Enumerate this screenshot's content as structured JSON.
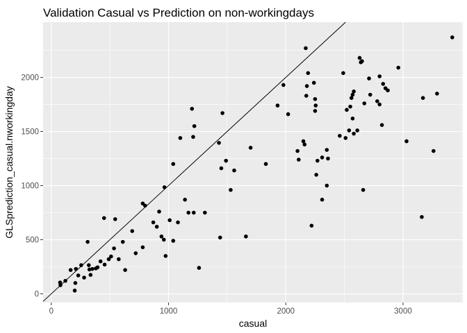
{
  "chart_data": {
    "type": "scatter",
    "title": "Validation Casual vs Prediction on non-workingdays",
    "xlabel": "casual",
    "ylabel": "GLSprediction_casual.nworkingday",
    "xlim": [
      -70,
      3510
    ],
    "ylim": [
      -80,
      2510
    ],
    "x_ticks": [
      0,
      1000,
      2000,
      3000
    ],
    "y_ticks": [
      0,
      500,
      1000,
      1500,
      2000
    ],
    "x_tick_labels": [
      "0",
      "1000",
      "2000",
      "3000"
    ],
    "y_tick_labels": [
      "0",
      "500",
      "1000",
      "1500",
      "2000"
    ],
    "reference_line": {
      "slope": 1,
      "intercept": 0
    },
    "grid": true,
    "legend": "none",
    "colors": {
      "panel": "#ebebeb",
      "grid": "#ffffff",
      "point": "#000000",
      "line": "#000000"
    },
    "points": [
      [
        75,
        105
      ],
      [
        78,
        80
      ],
      [
        120,
        120
      ],
      [
        165,
        220
      ],
      [
        200,
        30
      ],
      [
        205,
        100
      ],
      [
        210,
        230
      ],
      [
        230,
        170
      ],
      [
        255,
        265
      ],
      [
        280,
        150
      ],
      [
        310,
        480
      ],
      [
        320,
        265
      ],
      [
        325,
        225
      ],
      [
        335,
        175
      ],
      [
        350,
        230
      ],
      [
        380,
        235
      ],
      [
        395,
        245
      ],
      [
        420,
        300
      ],
      [
        450,
        700
      ],
      [
        455,
        270
      ],
      [
        490,
        320
      ],
      [
        510,
        345
      ],
      [
        535,
        420
      ],
      [
        545,
        690
      ],
      [
        575,
        320
      ],
      [
        610,
        480
      ],
      [
        630,
        220
      ],
      [
        690,
        580
      ],
      [
        720,
        375
      ],
      [
        780,
        430
      ],
      [
        780,
        835
      ],
      [
        800,
        815
      ],
      [
        870,
        660
      ],
      [
        900,
        620
      ],
      [
        920,
        760
      ],
      [
        940,
        530
      ],
      [
        960,
        500
      ],
      [
        965,
        985
      ],
      [
        975,
        350
      ],
      [
        1010,
        680
      ],
      [
        1040,
        490
      ],
      [
        1040,
        1200
      ],
      [
        1080,
        660
      ],
      [
        1100,
        1440
      ],
      [
        1140,
        870
      ],
      [
        1170,
        750
      ],
      [
        1200,
        1710
      ],
      [
        1210,
        1450
      ],
      [
        1215,
        750
      ],
      [
        1220,
        1550
      ],
      [
        1260,
        240
      ],
      [
        1310,
        750
      ],
      [
        1430,
        1395
      ],
      [
        1440,
        520
      ],
      [
        1450,
        1160
      ],
      [
        1460,
        1670
      ],
      [
        1490,
        1230
      ],
      [
        1530,
        960
      ],
      [
        1560,
        1140
      ],
      [
        1660,
        530
      ],
      [
        1700,
        1350
      ],
      [
        1830,
        1200
      ],
      [
        1930,
        1740
      ],
      [
        1980,
        1930
      ],
      [
        2020,
        1660
      ],
      [
        2100,
        1320
      ],
      [
        2110,
        1240
      ],
      [
        2150,
        1410
      ],
      [
        2160,
        1380
      ],
      [
        2170,
        2270
      ],
      [
        2175,
        1830
      ],
      [
        2180,
        1920
      ],
      [
        2190,
        2040
      ],
      [
        2220,
        630
      ],
      [
        2240,
        1950
      ],
      [
        2250,
        1690
      ],
      [
        2250,
        1800
      ],
      [
        2255,
        1740
      ],
      [
        2260,
        1100
      ],
      [
        2270,
        1230
      ],
      [
        2310,
        1260
      ],
      [
        2310,
        870
      ],
      [
        2350,
        1000
      ],
      [
        2350,
        1330
      ],
      [
        2360,
        1250
      ],
      [
        2460,
        1460
      ],
      [
        2490,
        2040
      ],
      [
        2510,
        1440
      ],
      [
        2520,
        1700
      ],
      [
        2540,
        1510
      ],
      [
        2550,
        1730
      ],
      [
        2560,
        1810
      ],
      [
        2570,
        1840
      ],
      [
        2570,
        1620
      ],
      [
        2580,
        1870
      ],
      [
        2580,
        1480
      ],
      [
        2610,
        1510
      ],
      [
        2630,
        2180
      ],
      [
        2640,
        2140
      ],
      [
        2650,
        2150
      ],
      [
        2660,
        960
      ],
      [
        2670,
        1760
      ],
      [
        2710,
        1990
      ],
      [
        2720,
        1840
      ],
      [
        2780,
        1780
      ],
      [
        2800,
        2010
      ],
      [
        2800,
        1750
      ],
      [
        2820,
        1560
      ],
      [
        2830,
        1940
      ],
      [
        2850,
        1900
      ],
      [
        2870,
        1880
      ],
      [
        2960,
        2090
      ],
      [
        3030,
        1410
      ],
      [
        3160,
        710
      ],
      [
        3170,
        1810
      ],
      [
        3260,
        1320
      ],
      [
        3290,
        1850
      ],
      [
        3420,
        2370
      ]
    ]
  }
}
